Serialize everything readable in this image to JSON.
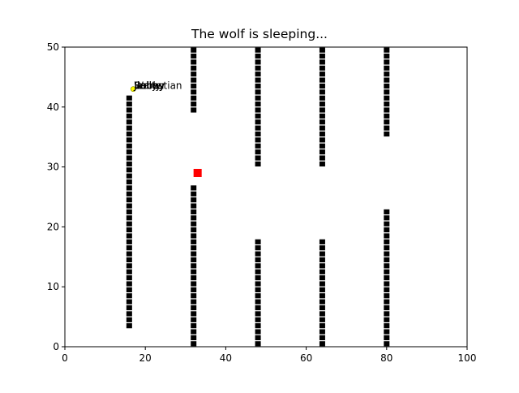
{
  "title": "The wolf is sleeping...",
  "colors": {
    "background": "#ffffff",
    "wall": "#000000",
    "wolf": "#ff0000",
    "sheep": "#ffff00",
    "sheep_edge": "#9a9a00"
  },
  "chart_data": {
    "type": "scatter",
    "title": "The wolf is sleeping...",
    "xlabel": "",
    "ylabel": "",
    "xlim": [
      0,
      100
    ],
    "ylim": [
      0,
      50
    ],
    "grid": false,
    "x_ticks": [
      0,
      20,
      40,
      60,
      80,
      100
    ],
    "y_ticks": [
      0,
      10,
      20,
      30,
      40,
      50
    ],
    "walls": [
      {
        "x": 16,
        "y_from": 3,
        "y_to": 42
      },
      {
        "x": 32,
        "y_from": 39,
        "y_to": 50
      },
      {
        "x": 32,
        "y_from": 0,
        "y_to": 27
      },
      {
        "x": 48,
        "y_from": 30,
        "y_to": 50
      },
      {
        "x": 48,
        "y_from": 0,
        "y_to": 18
      },
      {
        "x": 64,
        "y_from": 30,
        "y_to": 50
      },
      {
        "x": 64,
        "y_from": 0,
        "y_to": 18
      },
      {
        "x": 80,
        "y_from": 35,
        "y_to": 50
      },
      {
        "x": 80,
        "y_from": 0,
        "y_to": 23
      }
    ],
    "wolf": {
      "x": 33,
      "y": 29
    },
    "sheep": {
      "x": 17,
      "y": 43,
      "labels": [
        "Jimmy",
        "Bobby",
        "Sally",
        "Jenny",
        "Walter",
        "Sebastian"
      ]
    }
  }
}
